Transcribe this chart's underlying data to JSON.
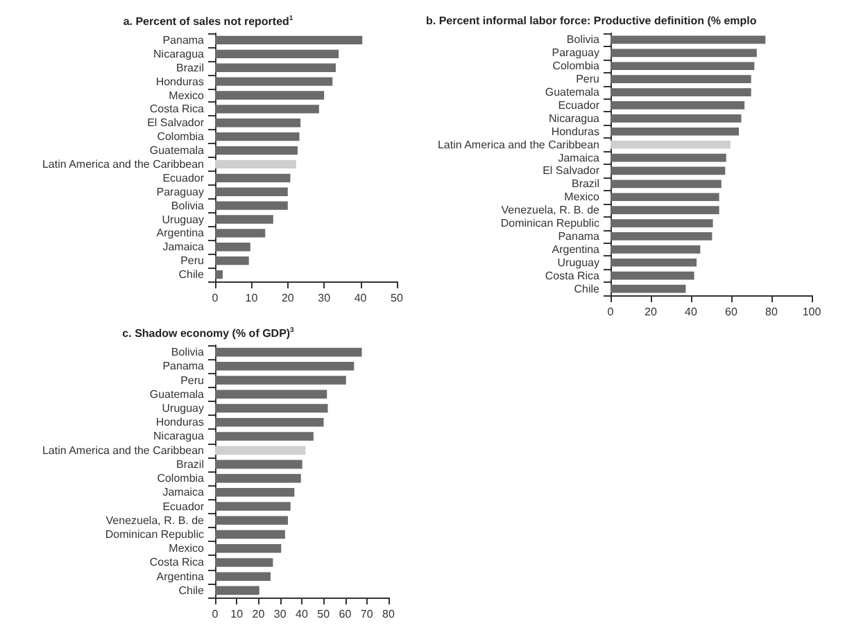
{
  "chart_data": [
    {
      "type": "bar",
      "orientation": "horizontal",
      "title": "a. Percent of sales not reported$^{1}$",
      "categories": [
        "Panama",
        "Nicaragua",
        "Brazil",
        "Honduras",
        "Mexico",
        "Costa Rica",
        "El Salvador",
        "Colombia",
        "Guatemala",
        "Latin America and the Caribbean",
        "Ecuador",
        "Paraguay",
        "Bolivia",
        "Uruguay",
        "Argentina",
        "Jamaica",
        "Peru",
        "Chile"
      ],
      "values": [
        40.5,
        34,
        33.2,
        32.3,
        30,
        28.6,
        23.5,
        23.2,
        22.7,
        22.3,
        20.7,
        20,
        20,
        16,
        13.8,
        9.7,
        9.3,
        2.1
      ],
      "colors": [
        "#6b6b6b",
        "#6b6b6b",
        "#6b6b6b",
        "#6b6b6b",
        "#6b6b6b",
        "#6b6b6b",
        "#6b6b6b",
        "#6b6b6b",
        "#6b6b6b",
        "#cfcfcf",
        "#6b6b6b",
        "#6b6b6b",
        "#6b6b6b",
        "#6b6b6b",
        "#6b6b6b",
        "#6b6b6b",
        "#6b6b6b",
        "#6b6b6b"
      ],
      "xlim": [
        0,
        50
      ],
      "xticks": [
        0,
        10,
        20,
        30,
        40,
        50
      ],
      "grid": false
    },
    {
      "type": "bar",
      "orientation": "horizontal",
      "title": "b. Percent informal labor force: Productive definition (% emplo",
      "categories": [
        "Bolivia",
        "Paraguay",
        "Colombia",
        "Peru",
        "Guatemala",
        "Ecuador",
        "Nicaragua",
        "Honduras",
        "Latin America and the Caribbean",
        "Jamaica",
        "El Salvador",
        "Brazil",
        "Mexico",
        "Venezuela, R. B. de",
        "Dominican Republic",
        "Panama",
        "Argentina",
        "Uruguay",
        "Costa Rica",
        "Chile"
      ],
      "values": [
        77,
        72.7,
        71.5,
        69.9,
        69.9,
        66.6,
        65,
        63.8,
        59.6,
        57.5,
        57,
        55.1,
        54,
        54,
        50.9,
        50.5,
        44.6,
        42.8,
        41.6,
        37.4
      ],
      "colors": [
        "#6b6b6b",
        "#6b6b6b",
        "#6b6b6b",
        "#6b6b6b",
        "#6b6b6b",
        "#6b6b6b",
        "#6b6b6b",
        "#6b6b6b",
        "#cfcfcf",
        "#6b6b6b",
        "#6b6b6b",
        "#6b6b6b",
        "#6b6b6b",
        "#6b6b6b",
        "#6b6b6b",
        "#6b6b6b",
        "#6b6b6b",
        "#6b6b6b",
        "#6b6b6b",
        "#6b6b6b"
      ],
      "xlim": [
        0,
        100
      ],
      "xticks": [
        0,
        20,
        40,
        60,
        80,
        100
      ],
      "grid": false
    },
    {
      "type": "bar",
      "orientation": "horizontal",
      "title": "c. Shadow economy (% of GDP)$^{3}$",
      "categories": [
        "Bolivia",
        "Panama",
        "Peru",
        "Guatemala",
        "Uruguay",
        "Honduras",
        "Nicaragua",
        "Latin America and the Caribbean",
        "Brazil",
        "Colombia",
        "Jamaica",
        "Ecuador",
        "Venezuela, R. B. de",
        "Dominican Republic",
        "Mexico",
        "Costa Rica",
        "Argentina",
        "Chile"
      ],
      "values": [
        67.7,
        64.1,
        60.4,
        51.6,
        52,
        50.1,
        45.4,
        41.7,
        40.2,
        39.6,
        36.6,
        34.8,
        33.6,
        32.3,
        30.5,
        26.7,
        25.6,
        20.4
      ],
      "colors": [
        "#6b6b6b",
        "#6b6b6b",
        "#6b6b6b",
        "#6b6b6b",
        "#6b6b6b",
        "#6b6b6b",
        "#6b6b6b",
        "#cfcfcf",
        "#6b6b6b",
        "#6b6b6b",
        "#6b6b6b",
        "#6b6b6b",
        "#6b6b6b",
        "#6b6b6b",
        "#6b6b6b",
        "#6b6b6b",
        "#6b6b6b",
        "#6b6b6b"
      ],
      "xlim": [
        0,
        80
      ],
      "xticks": [
        0,
        10,
        20,
        30,
        40,
        50,
        60,
        70,
        80
      ],
      "grid": false
    }
  ]
}
